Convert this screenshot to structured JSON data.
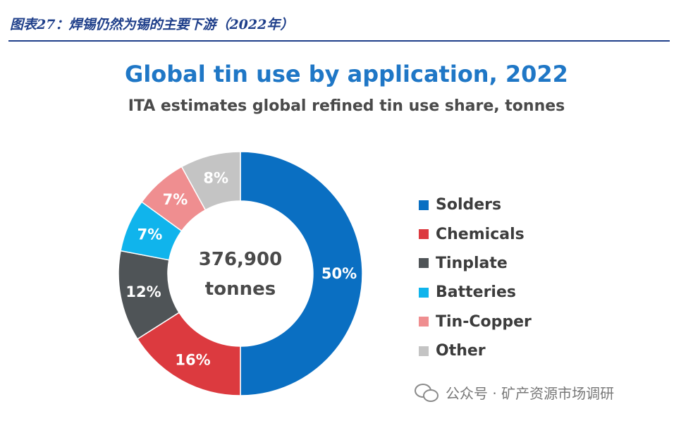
{
  "caption": "图表27：焊锡仍然为锡的主要下游（2022年）",
  "watermark": "公众号 · 矿产资源市场调研",
  "colors": {
    "caption": "#1f3f8a",
    "title": "#1f77c6"
  },
  "chart_data": {
    "type": "pie",
    "style": "donut",
    "title": "Global tin use by application, 2022",
    "subtitle": "ITA estimates global refined tin use share, tonnes",
    "center_label": [
      "376,900",
      "tonnes"
    ],
    "legend_position": "right",
    "slices": [
      {
        "name": "Solders",
        "value": 50,
        "label": "50%",
        "color": "#0a6fc2"
      },
      {
        "name": "Chemicals",
        "value": 16,
        "label": "16%",
        "color": "#dc3a3f"
      },
      {
        "name": "Tinplate",
        "value": 12,
        "label": "12%",
        "color": "#4f5457"
      },
      {
        "name": "Batteries",
        "value": 7,
        "label": "7%",
        "color": "#10b4ec"
      },
      {
        "name": "Tin-Copper",
        "value": 7,
        "label": "7%",
        "color": "#ef8e90"
      },
      {
        "name": "Other",
        "value": 8,
        "label": "8%",
        "color": "#c4c4c4"
      }
    ]
  }
}
